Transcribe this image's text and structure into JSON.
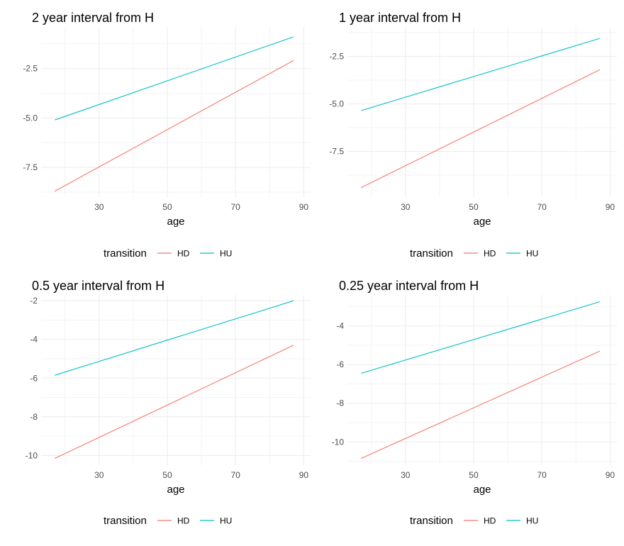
{
  "chart_data": [
    {
      "type": "line",
      "title": "2 year interval from H",
      "xlabel": "age",
      "ylabel": "",
      "xlim": [
        13,
        92
      ],
      "ylim": [
        -9.0,
        -0.4
      ],
      "x_ticks": [
        30,
        50,
        70,
        90
      ],
      "y_ticks": [
        -7.5,
        -5.0,
        -2.5
      ],
      "y_tick_labels": [
        "-7.5",
        "-5.0",
        "-2.5"
      ],
      "grid": true,
      "legend": {
        "title": "transition",
        "position": "bottom"
      },
      "series": [
        {
          "name": "HD",
          "color": "#F8766D",
          "x": [
            17,
            87
          ],
          "y": [
            -8.7,
            -2.1
          ]
        },
        {
          "name": "HU",
          "color": "#00BFC4",
          "x": [
            17,
            87
          ],
          "y": [
            -5.1,
            -0.9
          ]
        }
      ]
    },
    {
      "type": "line",
      "title": "1 year interval from H",
      "xlabel": "age",
      "ylabel": "",
      "xlim": [
        13,
        92
      ],
      "ylim": [
        -9.9,
        -0.95
      ],
      "x_ticks": [
        30,
        50,
        70,
        90
      ],
      "y_ticks": [
        -7.5,
        -5.0,
        -2.5
      ],
      "y_tick_labels": [
        "-7.5",
        "-5.0",
        "-2.5"
      ],
      "grid": true,
      "legend": {
        "title": "transition",
        "position": "bottom"
      },
      "series": [
        {
          "name": "HD",
          "color": "#F8766D",
          "x": [
            17,
            87
          ],
          "y": [
            -9.4,
            -3.2
          ]
        },
        {
          "name": "HU",
          "color": "#00BFC4",
          "x": [
            17,
            87
          ],
          "y": [
            -5.35,
            -1.55
          ]
        }
      ]
    },
    {
      "type": "line",
      "title": "0.5 year interval from H",
      "xlabel": "age",
      "ylabel": "",
      "xlim": [
        13,
        92
      ],
      "ylim": [
        -10.5,
        -1.7
      ],
      "x_ticks": [
        30,
        50,
        70,
        90
      ],
      "y_ticks": [
        -10,
        -8,
        -6,
        -4,
        -2
      ],
      "y_tick_labels": [
        "-10",
        "-8",
        "-6",
        "-4",
        "-2"
      ],
      "grid": true,
      "legend": {
        "title": "transition",
        "position": "bottom"
      },
      "series": [
        {
          "name": "HD",
          "color": "#F8766D",
          "x": [
            17,
            87
          ],
          "y": [
            -10.15,
            -4.3
          ]
        },
        {
          "name": "HU",
          "color": "#00BFC4",
          "x": [
            17,
            87
          ],
          "y": [
            -5.85,
            -2.0
          ]
        }
      ]
    },
    {
      "type": "line",
      "title": "0.25 year interval from H",
      "xlabel": "age",
      "ylabel": "",
      "xlim": [
        13,
        92
      ],
      "ylim": [
        -11.2,
        -2.4
      ],
      "x_ticks": [
        30,
        50,
        70,
        90
      ],
      "y_ticks": [
        -10,
        -8,
        -6,
        -4
      ],
      "y_tick_labels": [
        "-10",
        "-8",
        "-6",
        "-4"
      ],
      "grid": true,
      "legend": {
        "title": "transition",
        "position": "bottom"
      },
      "series": [
        {
          "name": "HD",
          "color": "#F8766D",
          "x": [
            17,
            87
          ],
          "y": [
            -10.85,
            -5.3
          ]
        },
        {
          "name": "HU",
          "color": "#00BFC4",
          "x": [
            17,
            87
          ],
          "y": [
            -6.45,
            -2.75
          ]
        }
      ]
    }
  ]
}
